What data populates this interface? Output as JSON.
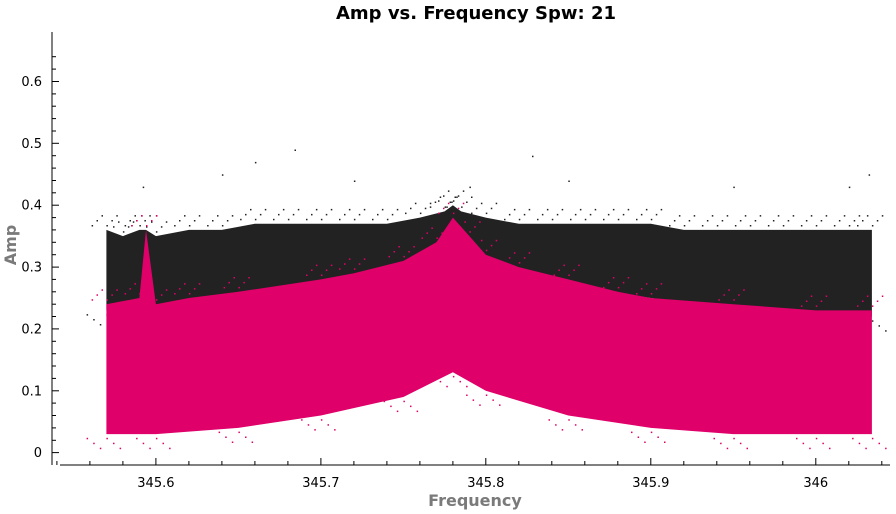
{
  "chart_data": {
    "type": "scatter",
    "title": "Amp vs. Frequency Spw: 21",
    "xlabel": "Frequency",
    "ylabel": "Amp",
    "xlim": [
      345.537,
      346.045
    ],
    "ylim": [
      -0.02,
      0.68
    ],
    "x_ticks": [
      345.6,
      345.7,
      345.8,
      345.9,
      346.0
    ],
    "x_tick_labels": [
      "345.6",
      "345.7",
      "345.8",
      "345.9",
      "346"
    ],
    "y_ticks": [
      0,
      0.1,
      0.2,
      0.3,
      0.4,
      0.5,
      0.6
    ],
    "y_tick_labels": [
      "0",
      "0.1",
      "0.2",
      "0.3",
      "0.4",
      "0.5",
      "0.6"
    ],
    "grid": false,
    "x_range": [
      345.566,
      346.034
    ],
    "series": [
      {
        "color": "#222222",
        "points": [
          [
            345.57,
            0.36
          ],
          [
            345.58,
            0.35
          ],
          [
            345.59,
            0.36
          ],
          [
            345.594,
            0.36
          ],
          [
            345.6,
            0.35
          ],
          [
            345.62,
            0.36
          ],
          [
            345.64,
            0.36
          ],
          [
            345.66,
            0.37
          ],
          [
            345.68,
            0.37
          ],
          [
            345.7,
            0.37
          ],
          [
            345.72,
            0.37
          ],
          [
            345.74,
            0.37
          ],
          [
            345.76,
            0.38
          ],
          [
            345.775,
            0.39
          ],
          [
            345.78,
            0.4
          ],
          [
            345.785,
            0.39
          ],
          [
            345.8,
            0.38
          ],
          [
            345.82,
            0.37
          ],
          [
            345.84,
            0.37
          ],
          [
            345.86,
            0.37
          ],
          [
            345.88,
            0.37
          ],
          [
            345.9,
            0.37
          ],
          [
            345.92,
            0.36
          ],
          [
            345.94,
            0.36
          ],
          [
            345.96,
            0.36
          ],
          [
            345.98,
            0.36
          ],
          [
            346.0,
            0.36
          ],
          [
            346.02,
            0.36
          ],
          [
            346.034,
            0.36
          ]
        ],
        "lower_points": [
          [
            345.57,
            0.23
          ],
          [
            345.6,
            0.23
          ],
          [
            345.65,
            0.25
          ],
          [
            345.7,
            0.27
          ],
          [
            345.75,
            0.29
          ],
          [
            345.78,
            0.3
          ],
          [
            345.8,
            0.29
          ],
          [
            345.85,
            0.27
          ],
          [
            345.9,
            0.25
          ],
          [
            345.95,
            0.23
          ],
          [
            346.0,
            0.22
          ],
          [
            346.034,
            0.22
          ]
        ],
        "outliers": [
          [
            345.592,
            0.43
          ],
          [
            345.64,
            0.45
          ],
          [
            345.66,
            0.47
          ],
          [
            345.684,
            0.49
          ],
          [
            345.72,
            0.44
          ],
          [
            345.79,
            0.43
          ],
          [
            345.828,
            0.48
          ],
          [
            345.85,
            0.44
          ],
          [
            345.95,
            0.43
          ],
          [
            346.02,
            0.43
          ],
          [
            346.032,
            0.45
          ]
        ]
      },
      {
        "color": "#e0006a",
        "points": [
          [
            345.57,
            0.24
          ],
          [
            345.59,
            0.25
          ],
          [
            345.594,
            0.36
          ],
          [
            345.6,
            0.24
          ],
          [
            345.62,
            0.25
          ],
          [
            345.65,
            0.26
          ],
          [
            345.7,
            0.28
          ],
          [
            345.72,
            0.29
          ],
          [
            345.75,
            0.31
          ],
          [
            345.77,
            0.34
          ],
          [
            345.78,
            0.38
          ],
          [
            345.79,
            0.35
          ],
          [
            345.8,
            0.32
          ],
          [
            345.82,
            0.3
          ],
          [
            345.85,
            0.28
          ],
          [
            345.88,
            0.26
          ],
          [
            345.9,
            0.25
          ],
          [
            345.95,
            0.24
          ],
          [
            346.0,
            0.23
          ],
          [
            346.034,
            0.23
          ]
        ],
        "lower_points": [
          [
            345.57,
            0.03
          ],
          [
            345.6,
            0.03
          ],
          [
            345.65,
            0.04
          ],
          [
            345.7,
            0.06
          ],
          [
            345.75,
            0.09
          ],
          [
            345.78,
            0.13
          ],
          [
            345.8,
            0.1
          ],
          [
            345.85,
            0.06
          ],
          [
            345.9,
            0.04
          ],
          [
            345.95,
            0.03
          ],
          [
            346.0,
            0.03
          ],
          [
            346.034,
            0.03
          ]
        ]
      }
    ]
  }
}
